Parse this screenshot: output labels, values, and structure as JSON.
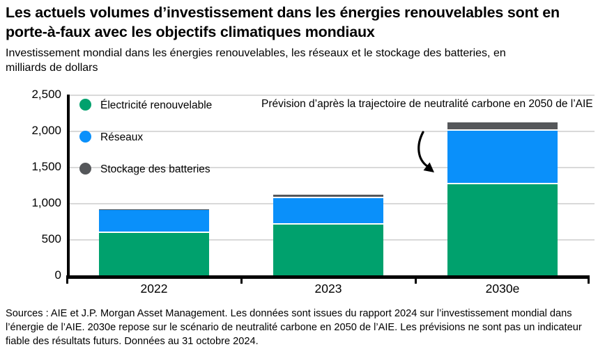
{
  "header": {
    "title": "Les actuels volumes d’investissement dans les énergies renouvelables sont en porte-à-faux avec les objectifs climatiques mondiaux",
    "subtitle": "Investissement mondial dans les énergies renouvelables, les réseaux et le stockage des batteries, en milliards de dollars"
  },
  "annotation": {
    "text": "Prévision d’après la trajectoire de neutralité carbone en 2050 de l’AIE"
  },
  "chart_data": {
    "type": "bar",
    "stacked": true,
    "title": "Investissement mondial dans les énergies renouvelables, les réseaux et le stockage des batteries, en milliards de dollars",
    "categories": [
      "2022",
      "2023",
      "2030e"
    ],
    "series": [
      {
        "name": "Électricité renouvelable",
        "color": "#00A16D",
        "values": [
          590,
          700,
          1260
        ]
      },
      {
        "name": "Réseaux",
        "color": "#0A90FA",
        "values": [
          315,
          365,
          740
        ]
      },
      {
        "name": "Stockage des batteries",
        "color": "#55575A",
        "values": [
          10,
          45,
          120
        ]
      }
    ],
    "totals_approx": [
      915,
      1110,
      2120
    ],
    "ylim": [
      0,
      2500
    ],
    "yticks": [
      0,
      500,
      1000,
      1500,
      2000,
      2500
    ],
    "ytick_labels": [
      "0",
      "500",
      "1,000",
      "1,500",
      "2,000",
      "2,500"
    ],
    "grid": true,
    "legend_position": "top-left",
    "annotation": "Prévision d’après la trajectoire de neutralité carbone en 2050 de l’AIE"
  },
  "footer": {
    "sources": "Sources : AIE et J.P. Morgan Asset Management. Les données sont issues du rapport 2024 sur l’investissement mondial dans l’énergie de l’AIE. 2030e repose sur le scénario de neutralité carbone en 2050 de l’AIE. Les prévisions ne sont pas un indicateur fiable des résultats futurs. Données au 31 octobre 2024."
  },
  "colors": {
    "renewables_green": "#00A16D",
    "grids_blue": "#0A90FA",
    "battery_gray": "#55575A",
    "gridline_gray": "#D9D9D9",
    "axis_black": "#000000"
  }
}
